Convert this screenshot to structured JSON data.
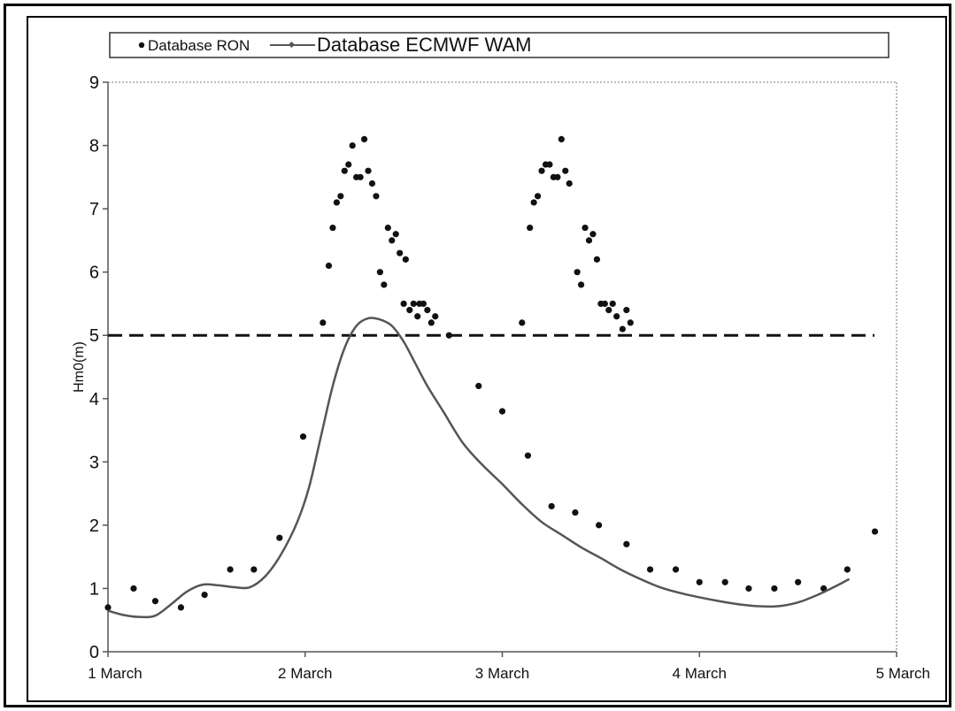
{
  "chart_data": {
    "type": "scatter",
    "title": "",
    "xlabel": "",
    "ylabel": "Hm0(m)",
    "ylim": [
      0,
      9
    ],
    "xlim": [
      0,
      4
    ],
    "yticks": [
      0,
      1,
      2,
      3,
      4,
      5,
      6,
      7,
      8,
      9
    ],
    "xticks": [
      {
        "value": 0,
        "label": "1 March"
      },
      {
        "value": 1,
        "label": "2 March"
      },
      {
        "value": 2,
        "label": "3 March"
      },
      {
        "value": 3,
        "label": "4 March"
      },
      {
        "value": 4,
        "label": "5 March"
      }
    ],
    "grid": false,
    "legend": {
      "placement": "top",
      "entries": [
        "Database RON",
        "Database ECMWF WAM"
      ]
    },
    "threshold": {
      "y": 5.0,
      "style": "dashed"
    },
    "series": [
      {
        "name": "Database RON",
        "kind": "scatter",
        "color": "#111111",
        "points": [
          [
            0.0,
            0.7
          ],
          [
            0.13,
            1.0
          ],
          [
            0.24,
            0.8
          ],
          [
            0.37,
            0.7
          ],
          [
            0.49,
            0.9
          ],
          [
            0.62,
            1.3
          ],
          [
            0.74,
            1.3
          ],
          [
            0.87,
            1.8
          ],
          [
            0.99,
            3.4
          ],
          [
            1.09,
            5.2
          ],
          [
            1.12,
            6.1
          ],
          [
            1.14,
            6.7
          ],
          [
            1.16,
            7.1
          ],
          [
            1.18,
            7.2
          ],
          [
            1.2,
            7.6
          ],
          [
            1.22,
            7.7
          ],
          [
            1.24,
            8.0
          ],
          [
            1.26,
            7.5
          ],
          [
            1.28,
            7.5
          ],
          [
            1.3,
            8.1
          ],
          [
            1.32,
            7.6
          ],
          [
            1.34,
            7.4
          ],
          [
            1.36,
            7.2
          ],
          [
            1.38,
            6.0
          ],
          [
            1.4,
            5.8
          ],
          [
            1.42,
            6.7
          ],
          [
            1.44,
            6.5
          ],
          [
            1.46,
            6.6
          ],
          [
            1.48,
            6.3
          ],
          [
            1.5,
            5.5
          ],
          [
            1.51,
            6.2
          ],
          [
            1.53,
            5.4
          ],
          [
            1.55,
            5.5
          ],
          [
            1.57,
            5.3
          ],
          [
            1.58,
            5.5
          ],
          [
            1.6,
            5.5
          ],
          [
            1.62,
            5.4
          ],
          [
            1.64,
            5.2
          ],
          [
            1.66,
            5.3
          ],
          [
            1.73,
            5.0
          ],
          [
            1.88,
            4.2
          ],
          [
            2.0,
            3.8
          ],
          [
            2.1,
            5.2
          ],
          [
            2.14,
            6.7
          ],
          [
            2.16,
            7.1
          ],
          [
            2.18,
            7.2
          ],
          [
            2.2,
            7.6
          ],
          [
            2.22,
            7.7
          ],
          [
            2.24,
            7.7
          ],
          [
            2.26,
            7.5
          ],
          [
            2.28,
            7.5
          ],
          [
            2.3,
            8.1
          ],
          [
            2.32,
            7.6
          ],
          [
            2.34,
            7.4
          ],
          [
            2.38,
            6.0
          ],
          [
            2.4,
            5.8
          ],
          [
            2.42,
            6.7
          ],
          [
            2.44,
            6.5
          ],
          [
            2.46,
            6.6
          ],
          [
            2.48,
            6.2
          ],
          [
            2.5,
            5.5
          ],
          [
            2.52,
            5.5
          ],
          [
            2.54,
            5.4
          ],
          [
            2.56,
            5.5
          ],
          [
            2.58,
            5.3
          ],
          [
            2.61,
            5.1
          ],
          [
            2.63,
            5.4
          ],
          [
            2.65,
            5.2
          ],
          [
            2.13,
            3.1
          ],
          [
            2.25,
            2.3
          ],
          [
            2.37,
            2.2
          ],
          [
            2.49,
            2.0
          ],
          [
            2.63,
            1.7
          ],
          [
            2.75,
            1.3
          ],
          [
            2.88,
            1.3
          ],
          [
            3.0,
            1.1
          ],
          [
            3.13,
            1.1
          ],
          [
            3.25,
            1.0
          ],
          [
            3.38,
            1.0
          ],
          [
            3.5,
            1.1
          ],
          [
            3.63,
            1.0
          ],
          [
            3.75,
            1.3
          ],
          [
            3.89,
            1.9
          ]
        ]
      },
      {
        "name": "Database ECMWF WAM",
        "kind": "line",
        "color": "#555555",
        "points": [
          [
            0.0,
            0.65
          ],
          [
            0.08,
            0.58
          ],
          [
            0.16,
            0.55
          ],
          [
            0.24,
            0.57
          ],
          [
            0.32,
            0.75
          ],
          [
            0.4,
            0.95
          ],
          [
            0.48,
            1.06
          ],
          [
            0.56,
            1.05
          ],
          [
            0.64,
            1.02
          ],
          [
            0.72,
            1.02
          ],
          [
            0.8,
            1.2
          ],
          [
            0.88,
            1.55
          ],
          [
            0.96,
            2.05
          ],
          [
            1.02,
            2.6
          ],
          [
            1.08,
            3.4
          ],
          [
            1.14,
            4.2
          ],
          [
            1.2,
            4.8
          ],
          [
            1.26,
            5.15
          ],
          [
            1.32,
            5.27
          ],
          [
            1.38,
            5.25
          ],
          [
            1.44,
            5.15
          ],
          [
            1.5,
            4.9
          ],
          [
            1.56,
            4.55
          ],
          [
            1.62,
            4.2
          ],
          [
            1.7,
            3.8
          ],
          [
            1.8,
            3.3
          ],
          [
            1.9,
            2.95
          ],
          [
            2.0,
            2.65
          ],
          [
            2.1,
            2.33
          ],
          [
            2.2,
            2.05
          ],
          [
            2.3,
            1.85
          ],
          [
            2.4,
            1.65
          ],
          [
            2.5,
            1.48
          ],
          [
            2.6,
            1.3
          ],
          [
            2.7,
            1.15
          ],
          [
            2.8,
            1.02
          ],
          [
            2.9,
            0.93
          ],
          [
            3.0,
            0.86
          ],
          [
            3.1,
            0.8
          ],
          [
            3.2,
            0.75
          ],
          [
            3.3,
            0.72
          ],
          [
            3.4,
            0.72
          ],
          [
            3.5,
            0.78
          ],
          [
            3.6,
            0.9
          ],
          [
            3.7,
            1.05
          ],
          [
            3.76,
            1.15
          ]
        ]
      }
    ]
  }
}
